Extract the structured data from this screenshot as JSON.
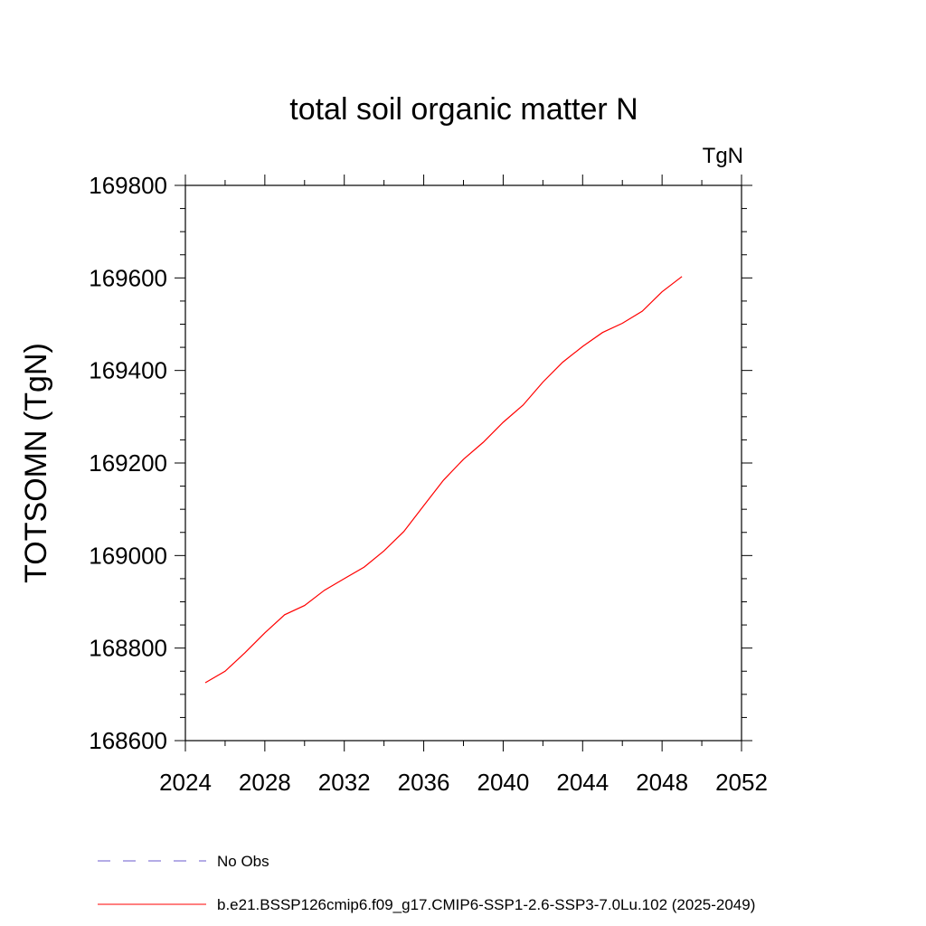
{
  "chart_data": {
    "type": "line",
    "title": "total soil organic matter N",
    "units_label": "TgN",
    "ylabel": "TOTSOMN  (TgN)",
    "xlabel": "",
    "xlim": [
      2024,
      2052
    ],
    "ylim": [
      168600,
      169800
    ],
    "x_ticks": [
      2024,
      2028,
      2032,
      2036,
      2040,
      2044,
      2048,
      2052
    ],
    "x_tick_labels": [
      "2024",
      "2028",
      "2032",
      "2036",
      "2040",
      "2044",
      "2048",
      "2052"
    ],
    "y_ticks": [
      168600,
      168800,
      169000,
      169200,
      169400,
      169600,
      169800
    ],
    "y_tick_labels": [
      "168600",
      "168800",
      "169000",
      "169200",
      "169400",
      "169600",
      "169800"
    ],
    "grid": false,
    "legend_position": "bottom",
    "series": [
      {
        "name": "b.e21.BSSP126cmip6.f09_g17.CMIP6-SSP1-2.6-SSP3-7.0Lu.102 (2025-2049)",
        "color": "#ff0000",
        "x": [
          2025,
          2026,
          2027,
          2028,
          2029,
          2030,
          2031,
          2032,
          2033,
          2034,
          2035,
          2036,
          2037,
          2038,
          2039,
          2040,
          2041,
          2042,
          2043,
          2044,
          2045,
          2046,
          2047,
          2048,
          2049
        ],
        "y": [
          168725,
          168750,
          168790,
          168833,
          168872,
          168892,
          168925,
          168950,
          168975,
          169010,
          169052,
          169108,
          169163,
          169208,
          169245,
          169288,
          169325,
          169375,
          169418,
          169452,
          169482,
          169502,
          169528,
          169570,
          169603
        ]
      }
    ],
    "legend": [
      {
        "label": "No Obs",
        "color": "#6a5acd",
        "style": "dashed"
      },
      {
        "label": "b.e21.BSSP126cmip6.f09_g17.CMIP6-SSP1-2.6-SSP3-7.0Lu.102 (2025-2049)",
        "color": "#ff0000",
        "style": "solid"
      }
    ]
  }
}
